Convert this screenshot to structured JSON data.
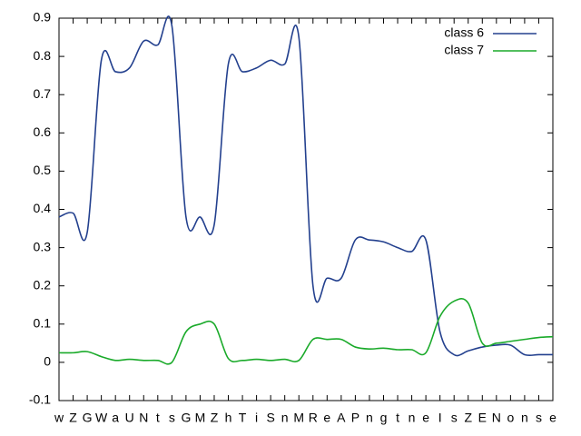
{
  "chart_data": {
    "type": "line",
    "categories": [
      "w",
      "Z",
      "G",
      "W",
      "a",
      "U",
      "N",
      "t",
      "s",
      "G",
      "M",
      "Z",
      "h",
      "T",
      "i",
      "S",
      "n",
      "M",
      "R",
      "e",
      "A",
      "P",
      "n",
      "g",
      "t",
      "n",
      "e",
      "I",
      "s",
      "Z",
      "E",
      "N",
      "o",
      "n",
      "s",
      "e"
    ],
    "series": [
      {
        "name": "class 6",
        "color": "#23408e",
        "values": [
          0.38,
          0.39,
          0.34,
          0.79,
          0.76,
          0.77,
          0.84,
          0.83,
          0.88,
          0.38,
          0.38,
          0.36,
          0.78,
          0.76,
          0.77,
          0.79,
          0.78,
          0.85,
          0.2,
          0.22,
          0.22,
          0.32,
          0.32,
          0.315,
          0.3,
          0.29,
          0.32,
          0.08,
          0.02,
          0.03,
          0.04,
          0.045,
          0.045,
          0.02,
          0.02,
          0.02
        ]
      },
      {
        "name": "class 7",
        "color": "#1aaa2a",
        "values": [
          0.025,
          0.025,
          0.028,
          0.015,
          0.005,
          0.008,
          0.005,
          0.005,
          0.0,
          0.08,
          0.1,
          0.1,
          0.01,
          0.005,
          0.008,
          0.005,
          0.008,
          0.005,
          0.06,
          0.06,
          0.06,
          0.04,
          0.035,
          0.037,
          0.033,
          0.033,
          0.025,
          0.12,
          0.16,
          0.155,
          0.05,
          0.05,
          0.055,
          0.06,
          0.065,
          0.067
        ]
      }
    ],
    "ylim": [
      -0.1,
      0.9
    ],
    "yticks": [
      -0.1,
      0,
      0.1,
      0.2,
      0.3,
      0.4,
      0.5,
      0.6,
      0.7,
      0.8,
      0.9
    ],
    "legend": "upper right"
  }
}
